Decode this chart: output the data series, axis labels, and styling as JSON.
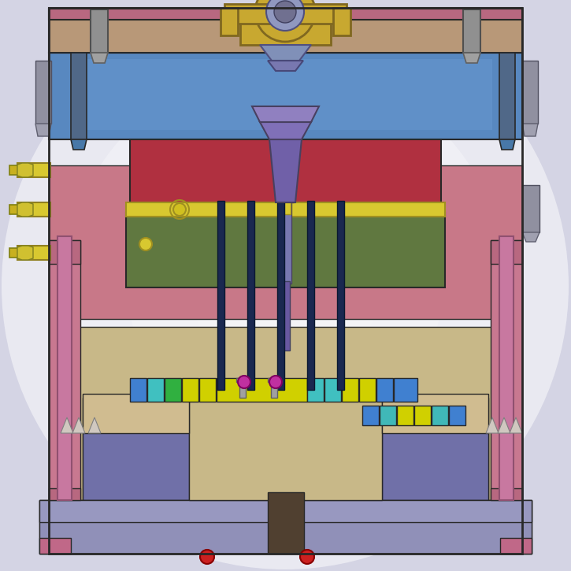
{
  "bg_color": "#d8d8e8",
  "colors": {
    "tan_body": "#b89878",
    "pink_plate": "#c87890",
    "blue_top": "#5888c0",
    "red_block": "#b03040",
    "green_block": "#607840",
    "dark_navy": "#1a2850",
    "yellow_rail": "#d8c830",
    "gold_fitting": "#c8a830",
    "purple_sprue": "#7060a8",
    "lavender_base": "#9090b8",
    "tan_core": "#c8b888",
    "dark_brown": "#504030",
    "mauve": "#c06080",
    "gray_pin": "#909090",
    "cyan": "#40c8c8",
    "yellow_bright": "#d8d000",
    "magenta": "#c030a0",
    "blue_bright": "#4080d0",
    "green_bright": "#40b840",
    "pink_light": "#e0a0b0",
    "outline": "#282828",
    "dark_gray": "#606060",
    "blue_gray": "#7888a8",
    "rose": "#d07090",
    "mauve_dark": "#a05870",
    "brown_dark": "#3a2818",
    "tan_light": "#d0b890",
    "purple_light": "#8878b8",
    "blue_steel": "#6878a8"
  }
}
